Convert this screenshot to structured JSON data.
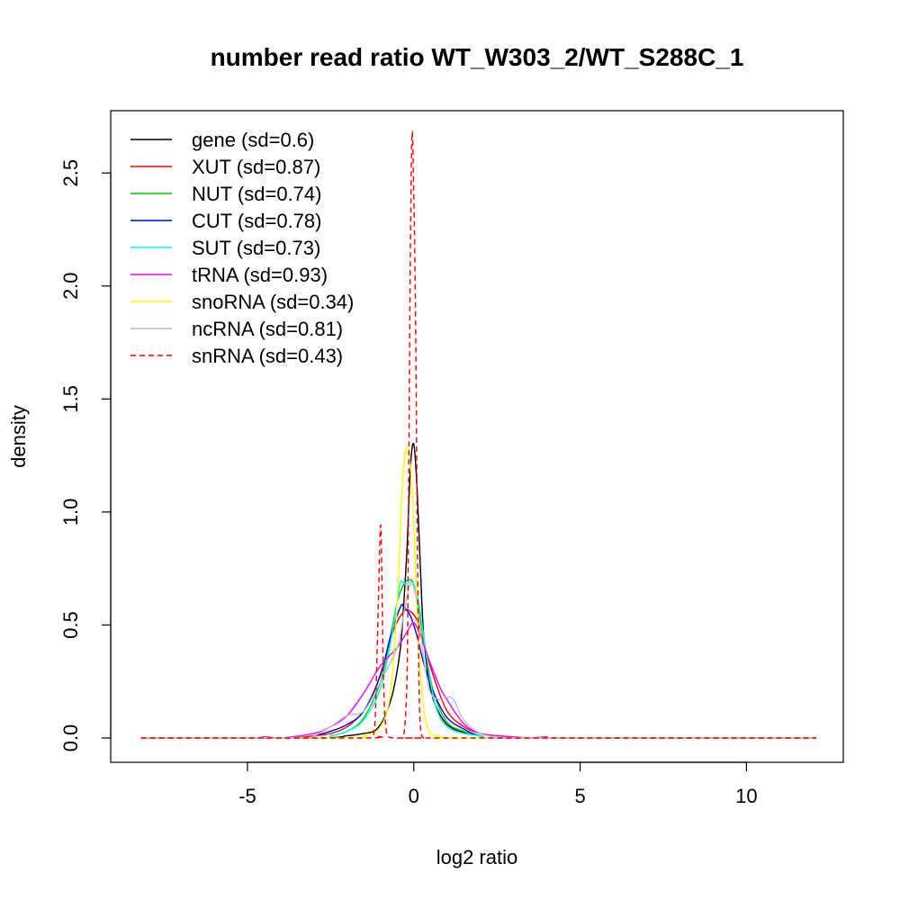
{
  "chart_data": {
    "type": "line",
    "title": "number read ratio WT_W303_2/WT_S288C_1",
    "xlabel": "log2 ratio",
    "ylabel": "density",
    "xlim": [
      -8.3,
      12.1
    ],
    "ylim": [
      0,
      2.68
    ],
    "xticks": [
      -5,
      0,
      5,
      10
    ],
    "xtick_labels": [
      "-5",
      "0",
      "5",
      "10"
    ],
    "yticks": [
      0.0,
      0.5,
      1.0,
      1.5,
      2.0,
      2.5
    ],
    "ytick_labels": [
      "0.0",
      "0.5",
      "1.0",
      "1.5",
      "2.0",
      "2.5"
    ],
    "grid": false,
    "legend_position": "top-left",
    "series": [
      {
        "name": "gene (sd=0.6)",
        "color": "#000000",
        "dash": false,
        "x": [
          -8.2,
          -3.0,
          -2.0,
          -1.5,
          -1.2,
          -1.0,
          -0.8,
          -0.6,
          -0.4,
          -0.3,
          -0.2,
          -0.1,
          0.0,
          0.1,
          0.2,
          0.3,
          0.5,
          0.8,
          1.2,
          2.0,
          3.0,
          12.1
        ],
        "y": [
          0,
          0,
          0.01,
          0.02,
          0.03,
          0.06,
          0.12,
          0.22,
          0.4,
          0.6,
          0.85,
          1.2,
          1.3,
          1.1,
          0.75,
          0.45,
          0.22,
          0.1,
          0.04,
          0.01,
          0,
          0
        ]
      },
      {
        "name": "XUT (sd=0.87)",
        "color": "#ff0000",
        "dash": false,
        "x": [
          -8.2,
          -4.0,
          -3.0,
          -2.5,
          -2.0,
          -1.5,
          -1.2,
          -0.9,
          -0.6,
          -0.3,
          -0.1,
          0.1,
          0.3,
          0.6,
          1.0,
          1.5,
          2.0,
          2.5,
          3.0,
          4.0,
          12.1
        ],
        "y": [
          0,
          0,
          0.01,
          0.02,
          0.05,
          0.12,
          0.2,
          0.33,
          0.48,
          0.56,
          0.56,
          0.52,
          0.42,
          0.27,
          0.12,
          0.05,
          0.02,
          0.01,
          0.005,
          0,
          0
        ]
      },
      {
        "name": "NUT (sd=0.74)",
        "color": "#00cc00",
        "dash": false,
        "x": [
          -8.2,
          -3.0,
          -2.5,
          -2.0,
          -1.5,
          -1.0,
          -0.7,
          -0.5,
          -0.3,
          -0.1,
          0.0,
          0.1,
          0.2,
          0.4,
          0.6,
          1.0,
          1.5,
          2.0,
          3.0,
          12.1
        ],
        "y": [
          0,
          0,
          0.01,
          0.03,
          0.09,
          0.25,
          0.45,
          0.6,
          0.68,
          0.7,
          0.68,
          0.62,
          0.52,
          0.35,
          0.2,
          0.07,
          0.03,
          0.01,
          0,
          0
        ]
      },
      {
        "name": "CUT (sd=0.78)",
        "color": "#0000ff",
        "dash": false,
        "x": [
          -8.2,
          -3.5,
          -3.0,
          -2.5,
          -2.0,
          -1.5,
          -1.0,
          -0.7,
          -0.4,
          -0.3,
          -0.1,
          0.1,
          0.3,
          0.6,
          1.0,
          1.5,
          2.0,
          3.0,
          12.1
        ],
        "y": [
          0,
          0,
          0.01,
          0.03,
          0.06,
          0.12,
          0.28,
          0.45,
          0.58,
          0.58,
          0.54,
          0.45,
          0.33,
          0.2,
          0.09,
          0.04,
          0.01,
          0,
          0
        ]
      },
      {
        "name": "SUT (sd=0.73)",
        "color": "#00ffff",
        "dash": false,
        "x": [
          -8.2,
          -3.0,
          -2.5,
          -2.0,
          -1.5,
          -1.0,
          -0.7,
          -0.5,
          -0.4,
          -0.25,
          -0.1,
          0.0,
          0.15,
          0.3,
          0.5,
          0.7,
          1.0,
          1.5,
          2.0,
          3.0,
          12.1
        ],
        "y": [
          0,
          0,
          0.01,
          0.03,
          0.08,
          0.22,
          0.42,
          0.6,
          0.69,
          0.68,
          0.69,
          0.68,
          0.6,
          0.45,
          0.25,
          0.12,
          0.05,
          0.02,
          0.01,
          0,
          0
        ]
      },
      {
        "name": "tRNA (sd=0.93)",
        "color": "#ff00ff",
        "dash": false,
        "x": [
          -8.2,
          -5.0,
          -4.5,
          -4.0,
          -3.0,
          -2.5,
          -2.0,
          -1.5,
          -1.0,
          -0.5,
          -0.2,
          0.0,
          0.2,
          0.5,
          0.8,
          1.0,
          1.3,
          1.6,
          2.0,
          2.5,
          3.0,
          3.5,
          4.0,
          4.5,
          12.1
        ],
        "y": [
          0,
          0,
          0.005,
          0,
          0.02,
          0.05,
          0.1,
          0.2,
          0.32,
          0.4,
          0.47,
          0.51,
          0.45,
          0.33,
          0.22,
          0.17,
          0.1,
          0.05,
          0.02,
          0.01,
          0.005,
          0,
          0.005,
          0,
          0
        ]
      },
      {
        "name": "snoRNA (sd=0.34)",
        "color": "#ffff00",
        "dash": false,
        "x": [
          -8.2,
          -2.0,
          -1.5,
          -1.0,
          -0.7,
          -0.5,
          -0.35,
          -0.25,
          -0.15,
          -0.05,
          0.05,
          0.15,
          0.25,
          0.35,
          0.5,
          0.7,
          1.0,
          1.5,
          12.1
        ],
        "y": [
          0,
          0,
          0.01,
          0.05,
          0.2,
          0.6,
          1.1,
          1.27,
          1.26,
          1.1,
          0.75,
          0.4,
          0.2,
          0.08,
          0.02,
          0.01,
          0,
          0,
          0
        ]
      },
      {
        "name": "ncRNA (sd=0.81)",
        "color": "#bebebe",
        "dash": false,
        "x": [
          -8.2,
          -3.5,
          -3.0,
          -2.5,
          -2.0,
          -1.5,
          -1.0,
          -0.5,
          -0.3,
          -0.1,
          0.1,
          0.3,
          0.5,
          0.8,
          1.0,
          1.2,
          1.5,
          2.0,
          2.5,
          3.0,
          12.1
        ],
        "y": [
          0,
          0,
          0.01,
          0.05,
          0.1,
          0.12,
          0.25,
          0.4,
          0.55,
          0.68,
          0.6,
          0.35,
          0.2,
          0.17,
          0.18,
          0.17,
          0.08,
          0.02,
          0.005,
          0,
          0
        ]
      },
      {
        "name": "snRNA (sd=0.43)",
        "color": "#ff0000",
        "dash": true,
        "x": [
          -8.2,
          -1.5,
          -1.2,
          -1.1,
          -1.0,
          -0.95,
          -0.9,
          -0.8,
          -0.6,
          -0.4,
          -0.3,
          -0.2,
          -0.15,
          -0.1,
          -0.05,
          0.0,
          0.05,
          0.1,
          0.15,
          0.2,
          0.3,
          0.5,
          12.1
        ],
        "y": [
          0,
          0,
          0.02,
          0.4,
          0.94,
          0.6,
          0.2,
          0.01,
          0,
          0,
          0.01,
          0.3,
          1.2,
          2.2,
          2.68,
          2.4,
          1.9,
          1.0,
          0.3,
          0.05,
          0,
          0,
          0
        ]
      }
    ]
  }
}
